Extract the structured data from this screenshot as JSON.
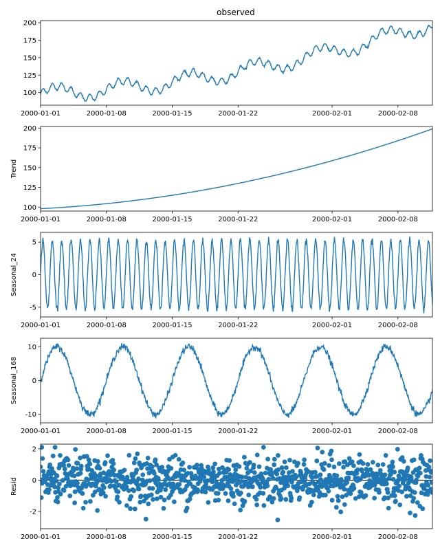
{
  "figure_title": "observed",
  "chart_data": [
    {
      "type": "line",
      "key": "observed",
      "title": "observed",
      "ylabel": "",
      "ylim": [
        82,
        203
      ],
      "yticks": [
        100,
        125,
        150,
        175,
        200
      ],
      "hours": 1000,
      "trend": {
        "start": 98,
        "end": 199
      },
      "amp24": 5,
      "amp168": 10,
      "noise": 0.6
    },
    {
      "type": "line",
      "key": "trend",
      "title": "",
      "ylabel": "Trend",
      "ylim": [
        95,
        202
      ],
      "yticks": [
        100,
        125,
        150,
        175,
        200
      ],
      "hours": 1000,
      "trend": {
        "start": 98,
        "end": 199
      }
    },
    {
      "type": "line",
      "key": "seasonal_24",
      "title": "",
      "ylabel": "Seasonal_24",
      "ylim": [
        -6.5,
        6.5
      ],
      "yticks": [
        -5,
        0,
        5
      ],
      "hours": 1000,
      "period": 24,
      "amplitude": 5.3
    },
    {
      "type": "line",
      "key": "seasonal_168",
      "title": "",
      "ylabel": "Seasonal_168",
      "ylim": [
        -12.5,
        12.5
      ],
      "yticks": [
        -10,
        0,
        10
      ],
      "hours": 1000,
      "period": 168,
      "amplitude": 10
    },
    {
      "type": "scatter",
      "key": "resid",
      "title": "",
      "ylabel": "Resid",
      "ylim": [
        -3.1,
        2.3
      ],
      "yticks": [
        -2,
        0,
        2
      ],
      "hours": 1000,
      "std": 0.75
    }
  ],
  "x_axis": {
    "start_hour": 0,
    "end_hour": 1000,
    "ticks": [
      {
        "label": "2000-01-01",
        "hour": 0
      },
      {
        "label": "2000-01-08",
        "hour": 168
      },
      {
        "label": "2000-01-15",
        "hour": 336
      },
      {
        "label": "2000-01-22",
        "hour": 504
      },
      {
        "label": "2000-02-01",
        "hour": 744
      },
      {
        "label": "2000-02-08",
        "hour": 912
      }
    ]
  },
  "colors": {
    "series": "#1f77b4",
    "axis": "#000000",
    "baseline": "#000000"
  }
}
